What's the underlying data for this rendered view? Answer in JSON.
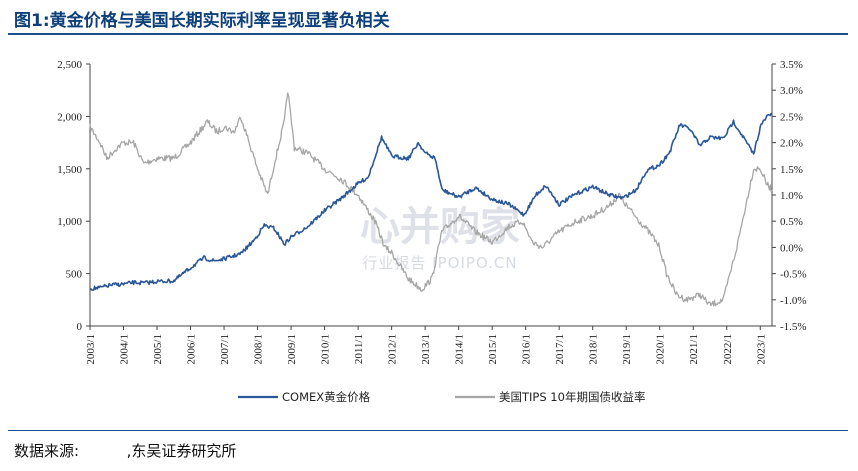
{
  "title": "图1:黄金价格与美国长期实际利率呈现显著负相关",
  "source": {
    "label": "数据来源:",
    "value": ",东吴证券研究所"
  },
  "watermark": {
    "main": "心并购家",
    "sub": "行业报告 IPOIPO.CN"
  },
  "chart_data": {
    "type": "line",
    "x_ticks": [
      "2003/1",
      "2004/1",
      "2005/1",
      "2006/1",
      "2007/1",
      "2008/1",
      "2009/1",
      "2010/1",
      "2011/1",
      "2012/1",
      "2013/1",
      "2014/1",
      "2015/1",
      "2016/1",
      "2017/1",
      "2018/1",
      "2019/1",
      "2020/1",
      "2021/1",
      "2022/1",
      "2023/1"
    ],
    "x_range": [
      2003.0,
      2023.35
    ],
    "y_left": {
      "ticks": [
        "0",
        "500",
        "1,000",
        "1,500",
        "2,000",
        "2,500"
      ],
      "range": [
        0,
        2500
      ]
    },
    "y_right": {
      "ticks": [
        "-1.5%",
        "-1.0%",
        "-0.5%",
        "0.0%",
        "0.5%",
        "1.0%",
        "1.5%",
        "2.0%",
        "2.5%",
        "3.0%",
        "3.5%"
      ],
      "range": [
        -1.5,
        3.5
      ]
    },
    "series": [
      {
        "name": "COMEX黄金价格",
        "axis": "left",
        "color": "#2a5798",
        "x": [
          2003.0,
          2003.3,
          2003.6,
          2004.0,
          2004.3,
          2004.6,
          2005.0,
          2005.5,
          2006.0,
          2006.4,
          2006.7,
          2007.0,
          2007.5,
          2007.9,
          2008.2,
          2008.5,
          2008.8,
          2009.0,
          2009.5,
          2010.0,
          2010.5,
          2011.0,
          2011.3,
          2011.7,
          2012.0,
          2012.5,
          2012.8,
          2013.0,
          2013.3,
          2013.5,
          2014.0,
          2014.5,
          2015.0,
          2015.5,
          2015.95,
          2016.3,
          2016.6,
          2017.0,
          2017.5,
          2018.0,
          2018.5,
          2018.9,
          2019.3,
          2019.6,
          2020.0,
          2020.3,
          2020.6,
          2020.9,
          2021.2,
          2021.5,
          2021.9,
          2022.2,
          2022.5,
          2022.8,
          2023.0,
          2023.2,
          2023.35
        ],
        "y": [
          355,
          365,
          390,
          400,
          415,
          410,
          425,
          430,
          555,
          650,
          620,
          640,
          690,
          820,
          960,
          930,
          780,
          850,
          950,
          1100,
          1220,
          1360,
          1420,
          1800,
          1620,
          1600,
          1750,
          1650,
          1600,
          1300,
          1230,
          1320,
          1210,
          1160,
          1060,
          1250,
          1340,
          1160,
          1260,
          1330,
          1250,
          1220,
          1300,
          1480,
          1540,
          1660,
          1920,
          1880,
          1720,
          1800,
          1790,
          1950,
          1800,
          1640,
          1900,
          2000,
          2030
        ]
      },
      {
        "name": "美国TIPS 10年期国债收益率",
        "axis": "right",
        "color": "#a6a6a6",
        "x": [
          2003.0,
          2003.3,
          2003.5,
          2003.8,
          2004.0,
          2004.3,
          2004.6,
          2005.0,
          2005.5,
          2006.0,
          2006.5,
          2006.8,
          2007.0,
          2007.3,
          2007.5,
          2007.7,
          2008.0,
          2008.3,
          2008.5,
          2008.8,
          2008.9,
          2009.1,
          2009.5,
          2010.0,
          2010.5,
          2011.0,
          2011.5,
          2011.8,
          2012.0,
          2012.5,
          2012.9,
          2013.2,
          2013.5,
          2014.0,
          2014.5,
          2015.0,
          2015.5,
          2015.9,
          2016.2,
          2016.5,
          2017.0,
          2017.5,
          2018.0,
          2018.5,
          2018.8,
          2019.0,
          2019.4,
          2019.8,
          2020.0,
          2020.2,
          2020.5,
          2020.8,
          2021.2,
          2021.5,
          2021.9,
          2022.1,
          2022.3,
          2022.5,
          2022.8,
          2023.0,
          2023.2,
          2023.35
        ],
        "y": [
          2.3,
          2.0,
          1.7,
          1.9,
          2.0,
          2.0,
          1.6,
          1.7,
          1.7,
          2.0,
          2.4,
          2.2,
          2.3,
          2.2,
          2.5,
          2.1,
          1.5,
          1.0,
          1.6,
          2.4,
          3.0,
          1.9,
          1.8,
          1.5,
          1.3,
          1.0,
          0.5,
          0.0,
          -0.1,
          -0.6,
          -0.8,
          -0.6,
          0.3,
          0.6,
          0.3,
          0.1,
          0.4,
          0.5,
          0.1,
          0.0,
          0.3,
          0.5,
          0.6,
          0.8,
          1.0,
          0.8,
          0.5,
          0.2,
          0.0,
          -0.5,
          -0.9,
          -1.0,
          -0.9,
          -1.1,
          -1.0,
          -0.5,
          0.0,
          0.6,
          1.5,
          1.5,
          1.2,
          1.1
        ]
      }
    ],
    "legend": [
      {
        "label": "COMEX黄金价格",
        "color": "#2a5798"
      },
      {
        "label": "美国TIPS 10年期国债收益率",
        "color": "#a6a6a6"
      }
    ],
    "legend_position": "bottom",
    "grid": false
  }
}
